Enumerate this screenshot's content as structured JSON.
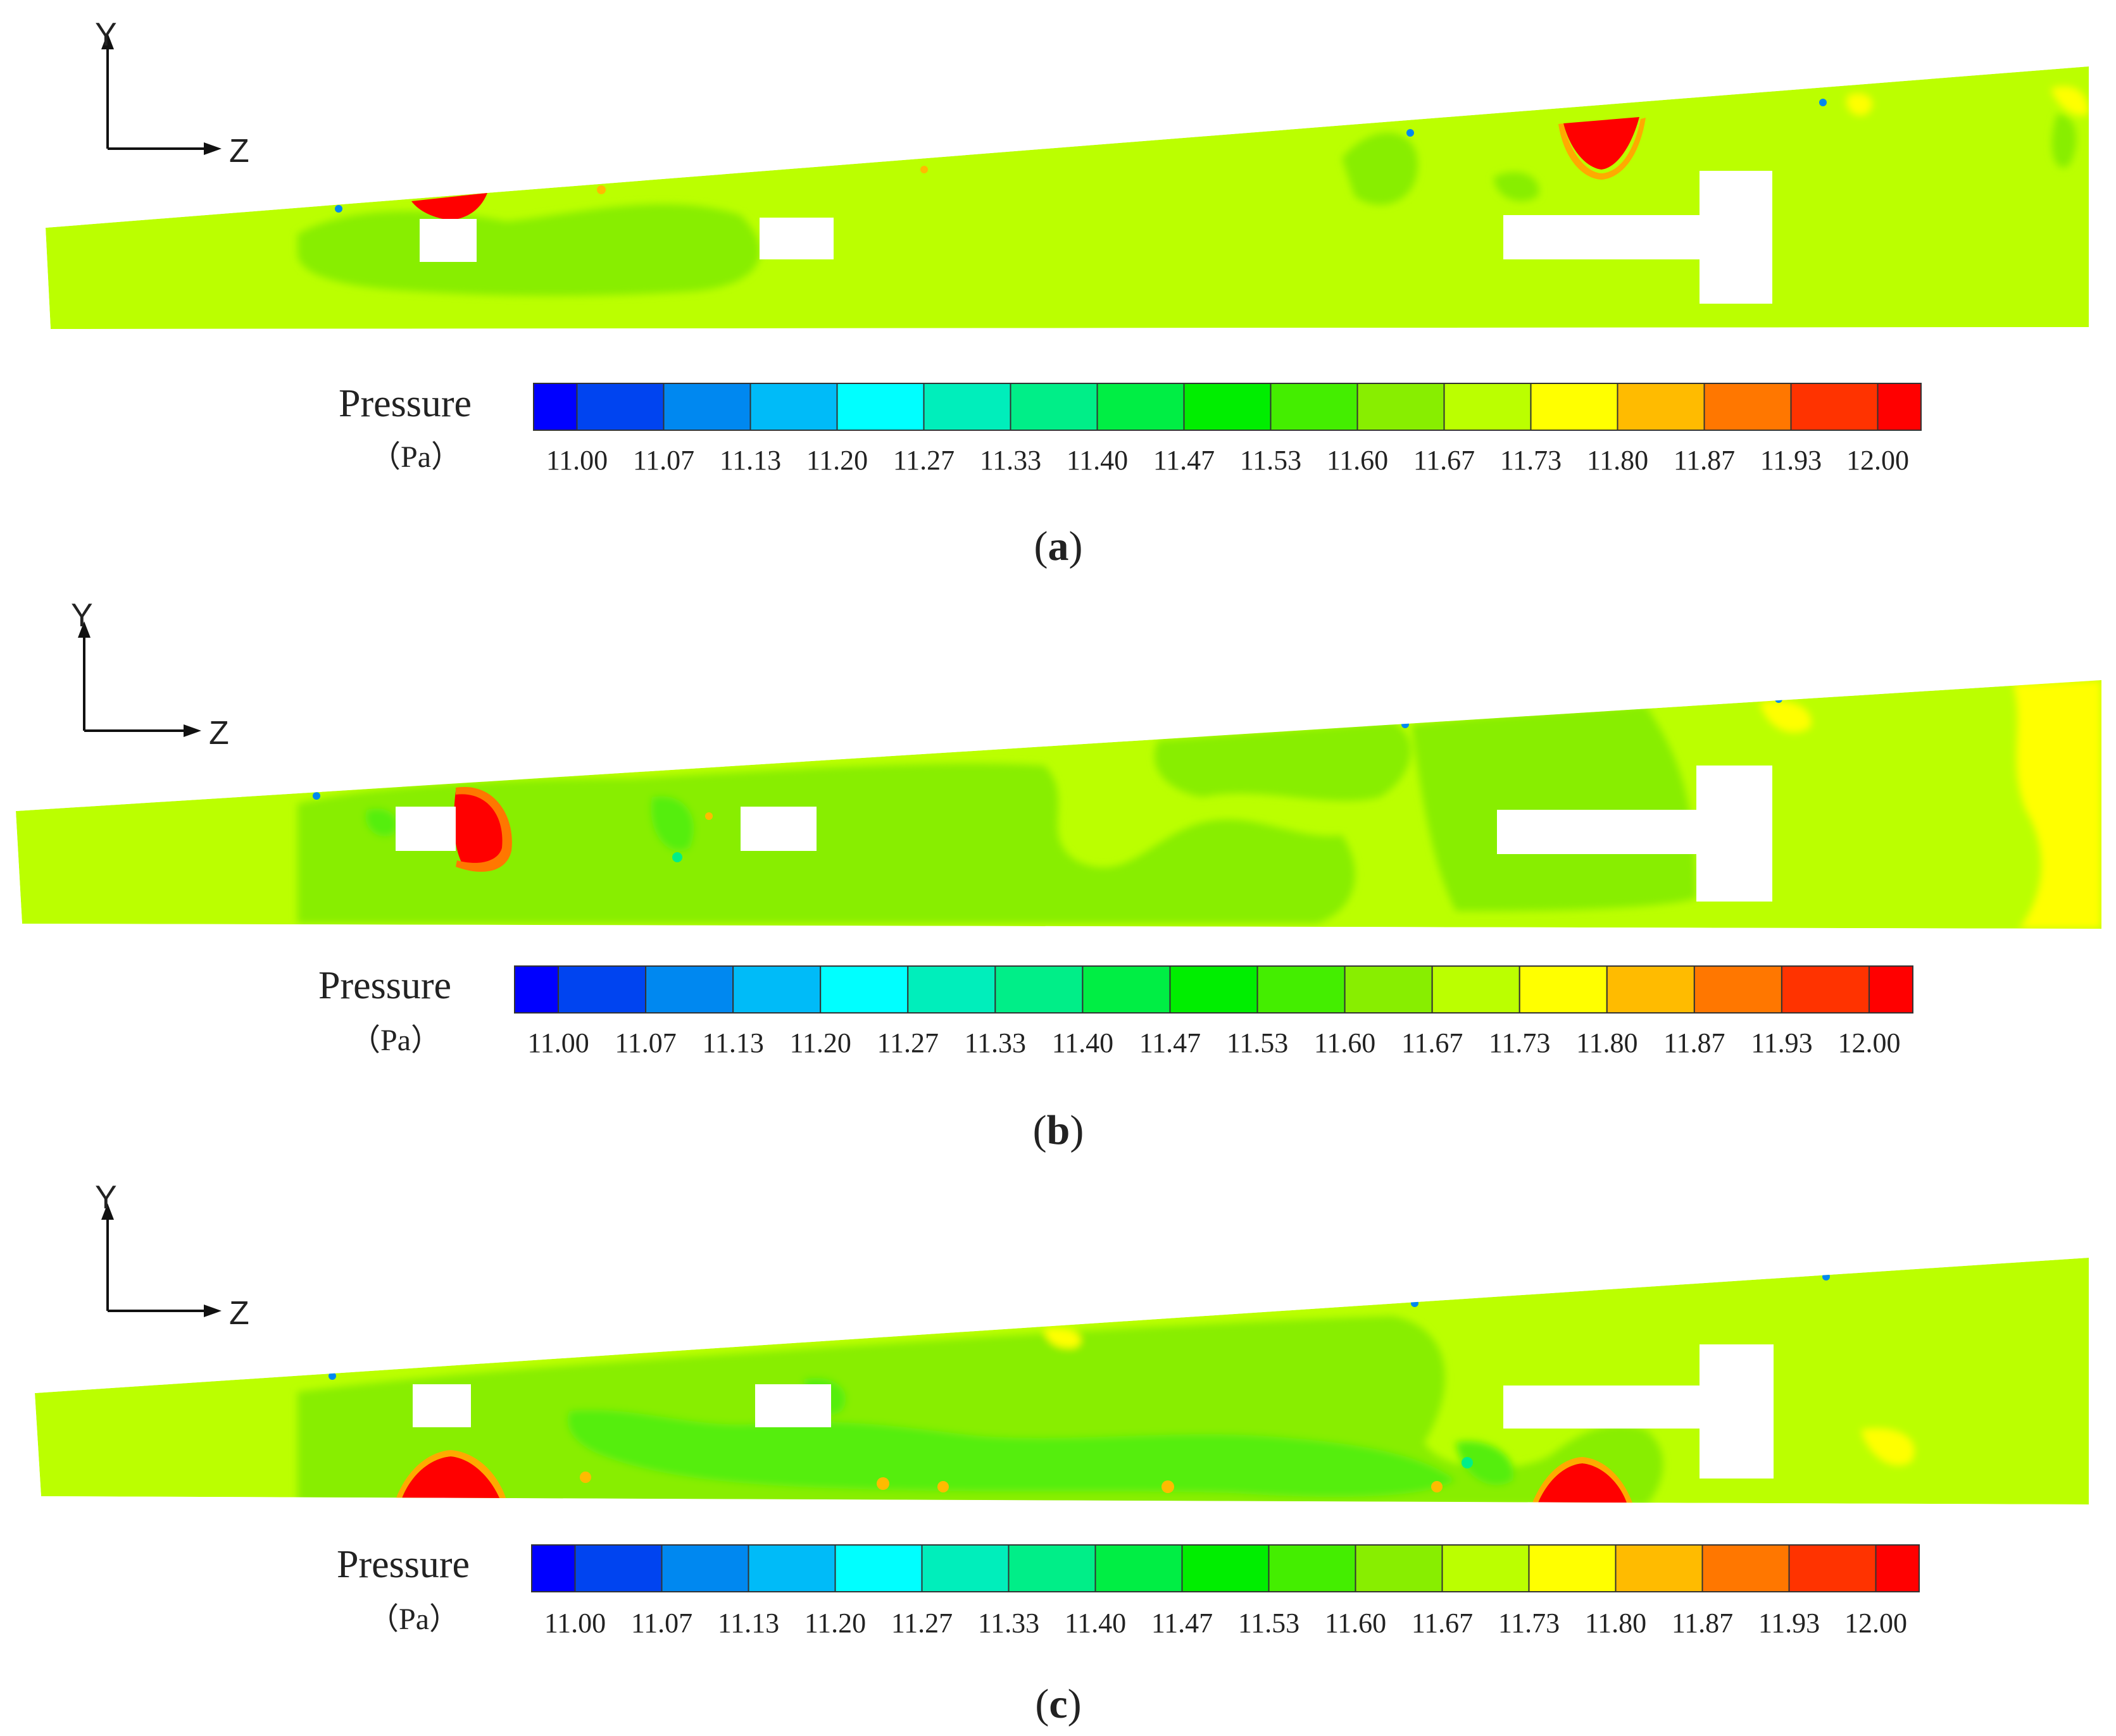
{
  "figure": {
    "axis_labels": {
      "y": "Y",
      "z": "Z"
    },
    "legend": {
      "title": "Pressure",
      "unit": "（Pa）",
      "ticks": [
        "11.00",
        "11.07",
        "11.13",
        "11.20",
        "11.27",
        "11.33",
        "11.40",
        "11.47",
        "11.53",
        "11.60",
        "11.67",
        "11.73",
        "11.80",
        "11.87",
        "11.93",
        "12.00"
      ],
      "colors": [
        "#0000ff",
        "#0044f0",
        "#0088f0",
        "#00bbf8",
        "#00ffff",
        "#00eebb",
        "#00ee88",
        "#00ee44",
        "#00ee00",
        "#44ee00",
        "#88ee00",
        "#bbff00",
        "#ffff00",
        "#ffbb00",
        "#ff7700",
        "#ff3300",
        "#ff0000"
      ]
    },
    "colors": {
      "base": "#bbff00",
      "green": "#88ee00",
      "green_dark": "#55ee11",
      "yellow": "#ffff00",
      "red": "#ff0000",
      "orange": "#ff8800"
    },
    "panels": [
      {
        "id": "a",
        "label_open": "(",
        "label_letter": "a",
        "label_close": ")"
      },
      {
        "id": "b",
        "label_open": "(",
        "label_letter": "b",
        "label_close": ")"
      },
      {
        "id": "c",
        "label_open": "(",
        "label_letter": "c",
        "label_close": ")"
      }
    ]
  }
}
